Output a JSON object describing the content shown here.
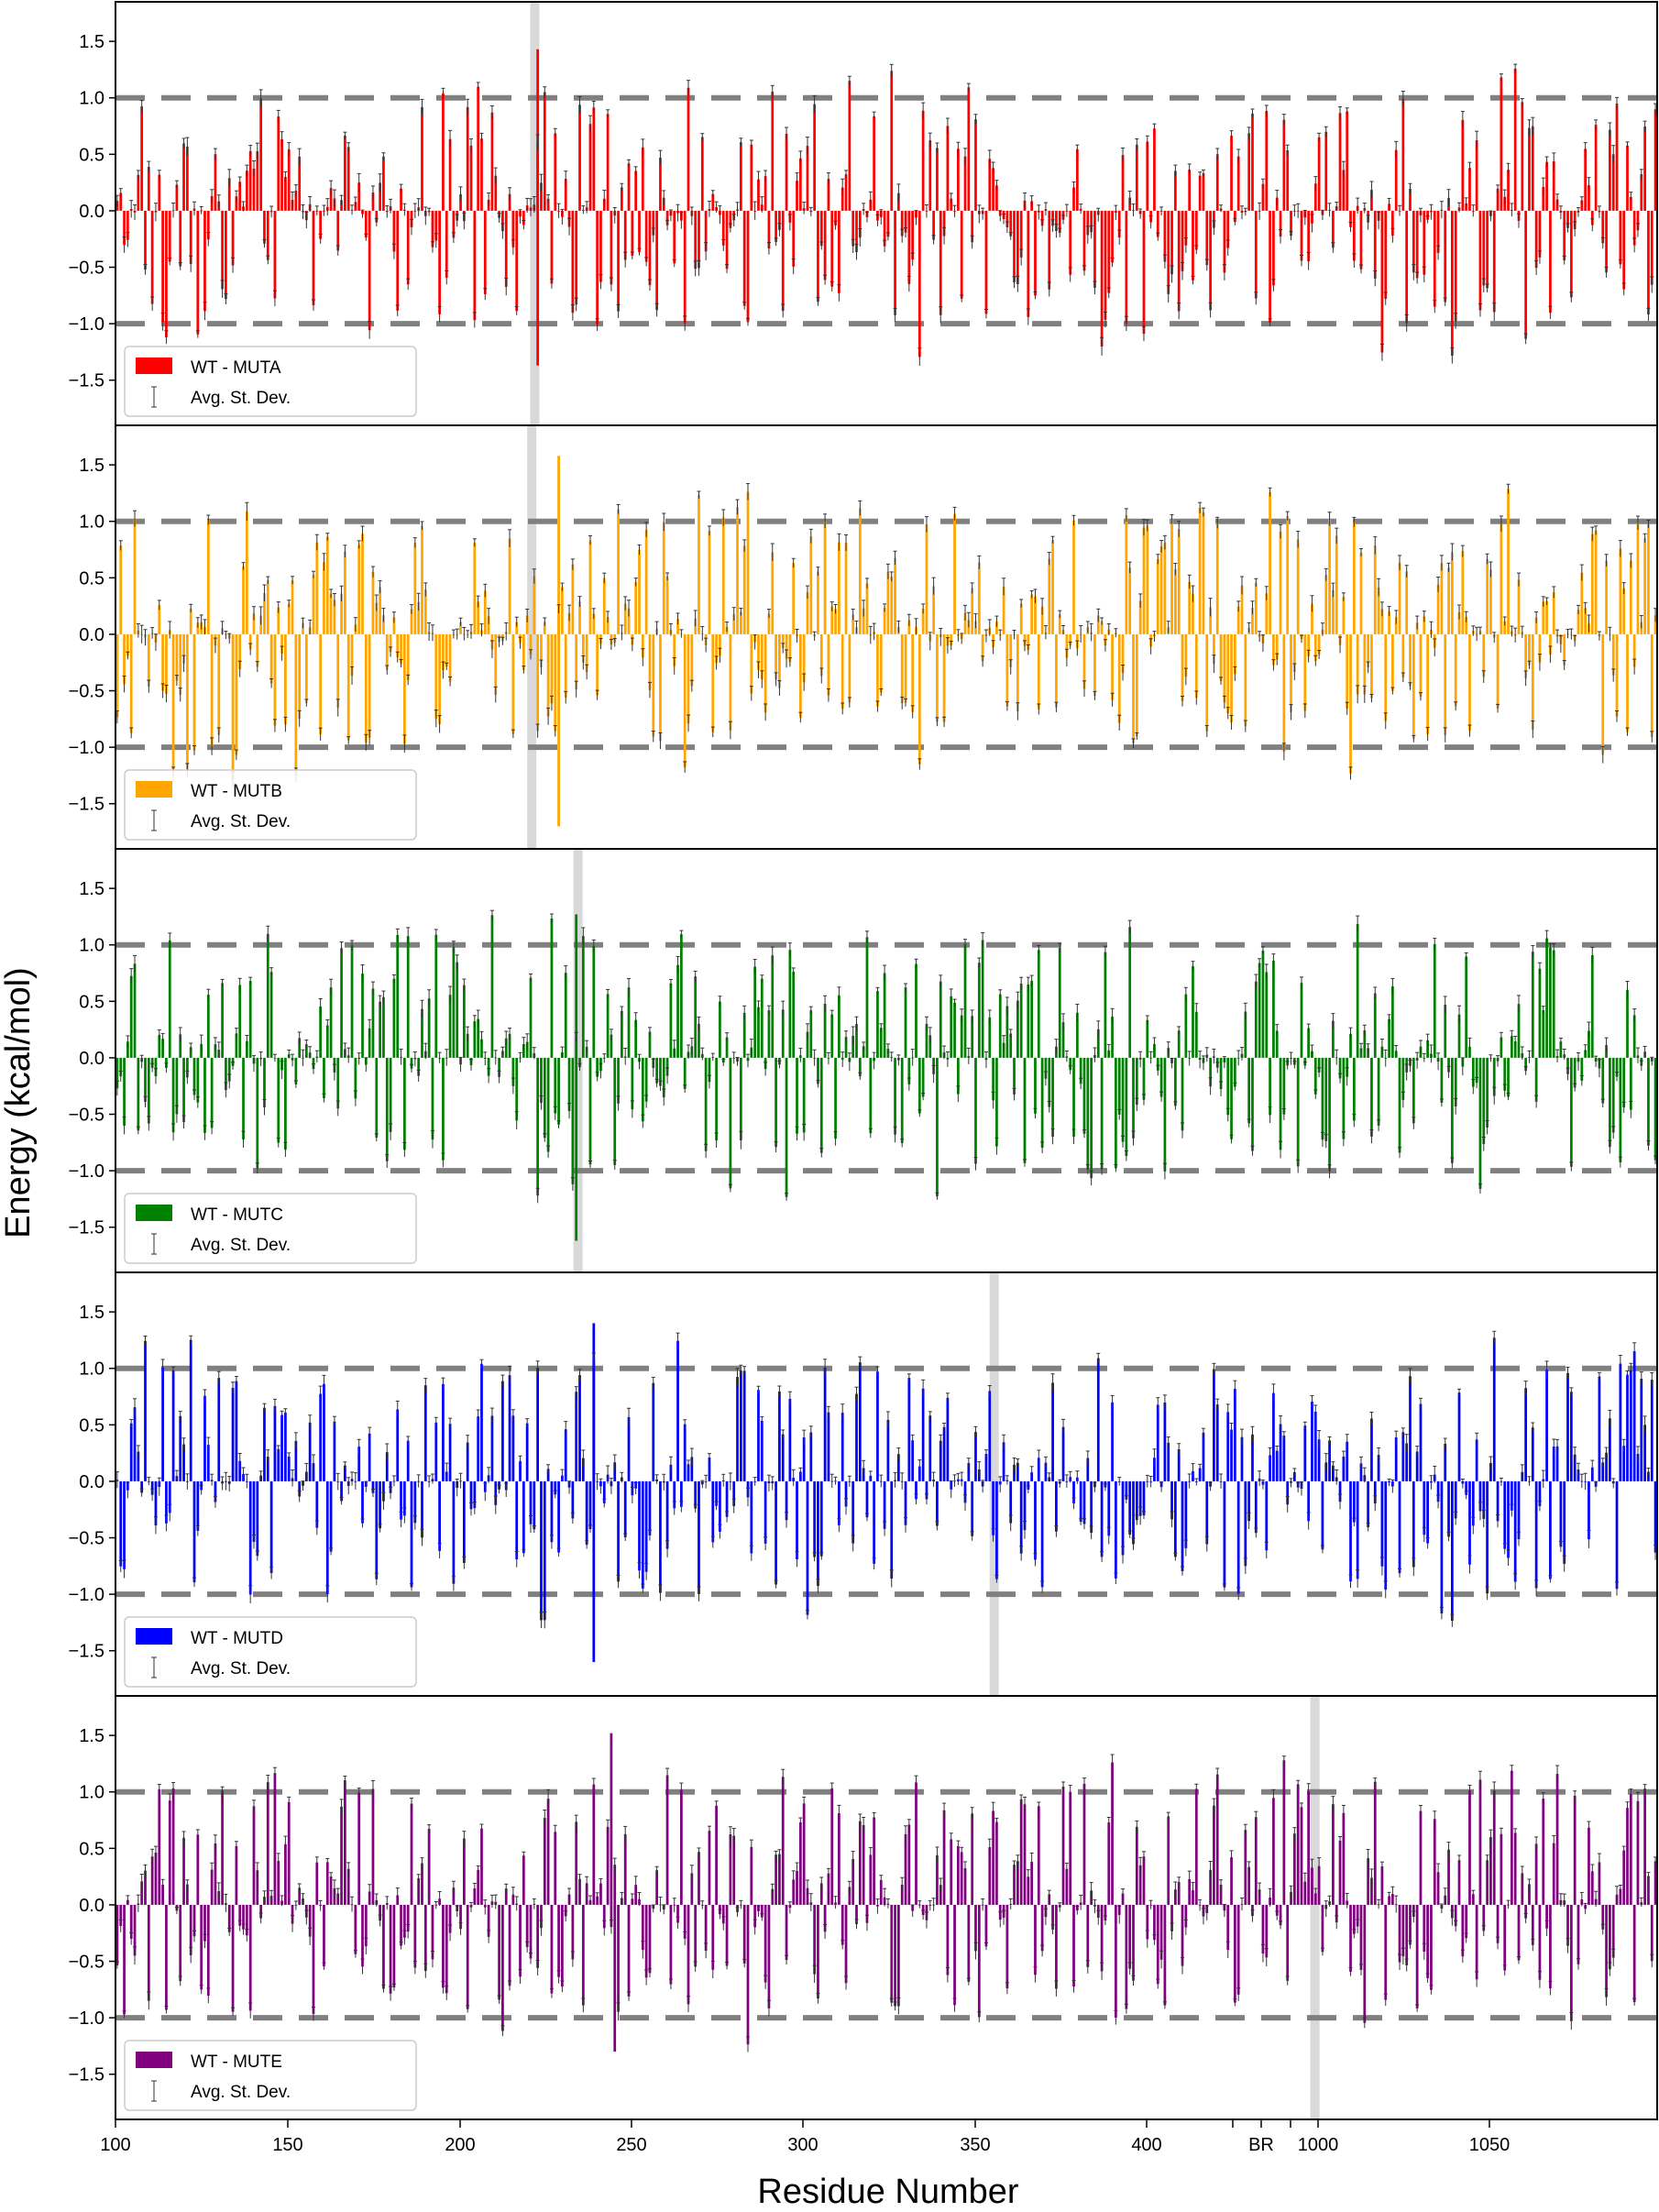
{
  "chart_data": {
    "type": "bar",
    "ylabel": "Energy (kcal/mol)",
    "xlabel": "Residue Number",
    "x_tick_labels": [
      "100",
      "150",
      "200",
      "250",
      "300",
      "350",
      "400",
      "BR",
      "1000",
      "1050"
    ],
    "y_tick_labels": [
      "1.5",
      "1.0",
      "0.5",
      "0.0",
      "−0.5",
      "−1.0",
      "−1.5"
    ],
    "ylim": [
      -1.9,
      1.85
    ],
    "reference_lines": [
      1.0,
      -1.0
    ],
    "legend_errorbar_label": "Avg. St. Dev.",
    "panels": [
      {
        "name": "WT - MUTA",
        "color": "#ff0000",
        "highlight_position": 0.272,
        "approx_extremes": {
          "max": 1.43,
          "min": -1.37
        },
        "approx_value_range": [
          -1.37,
          1.43
        ]
      },
      {
        "name": "WT - MUTB",
        "color": "#ffa500",
        "highlight_position": 0.27,
        "approx_extremes": {
          "max": 1.58,
          "min": -1.7
        },
        "approx_value_range": [
          -1.7,
          1.58
        ]
      },
      {
        "name": "WT - MUTC",
        "color": "#008000",
        "highlight_position": 0.3,
        "approx_extremes": {
          "max": 1.27,
          "min": -1.62
        },
        "approx_value_range": [
          -1.62,
          1.27
        ]
      },
      {
        "name": "WT - MUTD",
        "color": "#0000ff",
        "highlight_position": 0.57,
        "approx_extremes": {
          "max": 1.4,
          "min": -1.6
        },
        "approx_value_range": [
          -1.6,
          1.4
        ]
      },
      {
        "name": "WT - MUTE",
        "color": "#800080",
        "highlight_position": 0.778,
        "approx_extremes": {
          "max": 1.52,
          "min": -1.3
        },
        "approx_value_range": [
          -1.3,
          1.52
        ]
      }
    ]
  }
}
